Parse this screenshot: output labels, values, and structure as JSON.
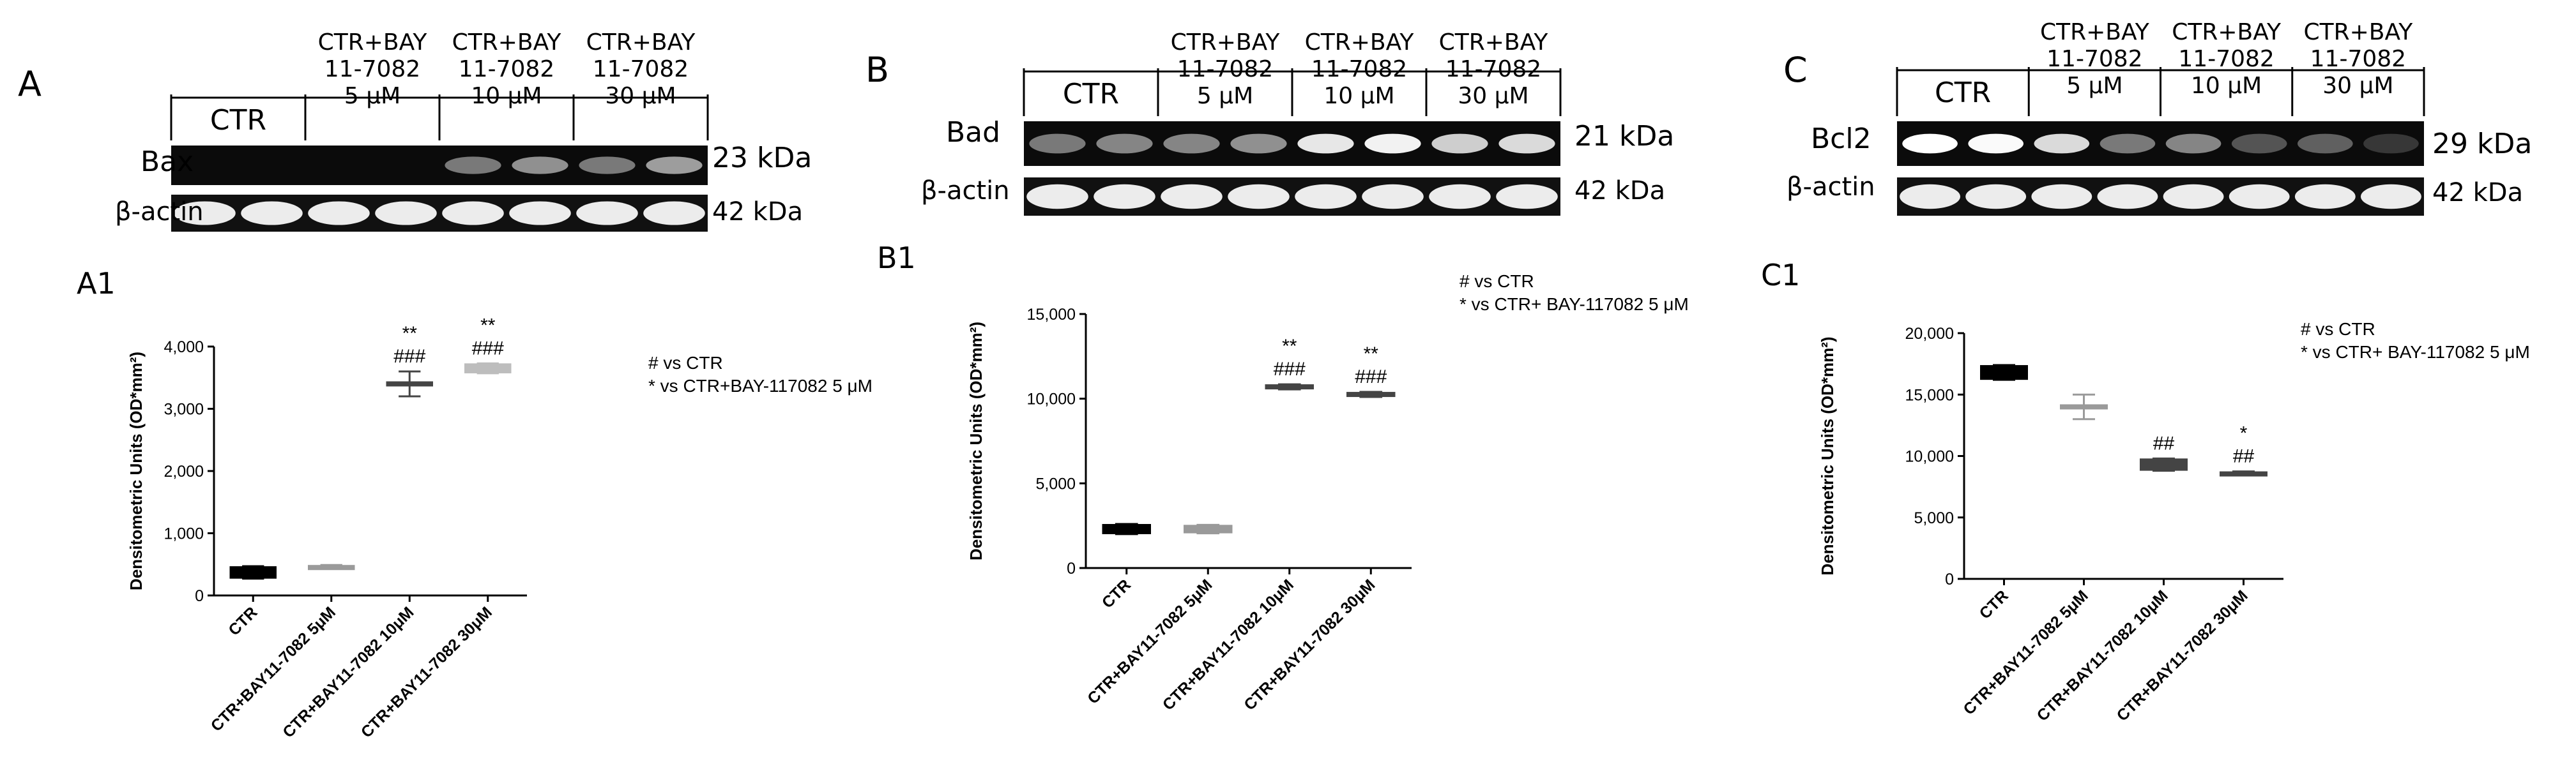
{
  "figure": {
    "blot_letters": [
      "A",
      "B",
      "C"
    ],
    "groups": [
      "CTR",
      "CTR+BAY\n11-7082\n5 μM",
      "CTR+BAY\n11-7082\n10 μM",
      "CTR+BAY\n11-7082\n30 μM"
    ],
    "blots": [
      {
        "letter": "A",
        "protein": "Bax",
        "protein_kda": "23 kDa",
        "control": "β-actin",
        "control_kda": "42 kDa"
      },
      {
        "letter": "B",
        "protein": "Bad",
        "protein_kda": "21 kDa",
        "control": "β-actin",
        "control_kda": "42 kDa"
      },
      {
        "letter": "C",
        "protein": "Bcl2",
        "protein_kda": "29 kDa",
        "control": "β-actin",
        "control_kda": "42 kDa"
      }
    ]
  },
  "chart_data": [
    {
      "panel": "A1",
      "type": "scatter",
      "ylabel": "Densitometric Units (OD*mm²)",
      "categories": [
        "CTR",
        "CTR+BAY11-7082 5μM",
        "CTR+BAY11-7082 10μM",
        "CTR+BAY11-7082 30μM"
      ],
      "values": [
        370,
        460,
        3400,
        3650
      ],
      "errors": [
        100,
        30,
        200,
        80
      ],
      "ylim": [
        0,
        4000
      ],
      "yticks": [
        "0",
        "1,000",
        "2,000",
        "3,000",
        "4,000"
      ],
      "annotations": [
        {
          "index": 2,
          "lines": [
            "**",
            "###"
          ]
        },
        {
          "index": 3,
          "lines": [
            "**",
            "###"
          ]
        }
      ],
      "legend": [
        "# vs CTR",
        "* vs CTR+BAY-117082 5 μM"
      ],
      "colors": [
        "#000000",
        "#9a9a9a",
        "#444444",
        "#bdbdbd"
      ]
    },
    {
      "panel": "B1",
      "type": "scatter",
      "ylabel": "Densitometric Units (OD*mm²)",
      "categories": [
        "CTR",
        "CTR+BAY11-7082 5μM",
        "CTR+BAY11-7082 10μM",
        "CTR+BAY11-7082 30μM"
      ],
      "values": [
        2300,
        2300,
        10700,
        10250
      ],
      "errors": [
        300,
        250,
        150,
        150
      ],
      "ylim": [
        0,
        15000
      ],
      "yticks": [
        "0",
        "5,000",
        "10,000",
        "15,000"
      ],
      "annotations": [
        {
          "index": 2,
          "lines": [
            "**",
            "###"
          ]
        },
        {
          "index": 3,
          "lines": [
            "**",
            "###"
          ]
        }
      ],
      "legend": [
        "# vs CTR",
        "* vs CTR+ BAY-117082 5 μM"
      ],
      "colors": [
        "#000000",
        "#9a9a9a",
        "#444444",
        "#444444"
      ]
    },
    {
      "panel": "C1",
      "type": "scatter",
      "ylabel": "Densitometric Units (OD*mm²)",
      "categories": [
        "CTR",
        "CTR+BAY11-7082 5μM",
        "CTR+BAY11-7082 10μM",
        "CTR+BAY11-7082 30μM"
      ],
      "values": [
        16800,
        14000,
        9300,
        8600
      ],
      "errors": [
        600,
        1000,
        500,
        150
      ],
      "ylim": [
        0,
        20000
      ],
      "yticks": [
        "0",
        "5,000",
        "10,000",
        "15,000",
        "20,000"
      ],
      "annotations": [
        {
          "index": 2,
          "lines": [
            "##"
          ]
        },
        {
          "index": 3,
          "lines": [
            "*",
            "##"
          ]
        }
      ],
      "legend": [
        "# vs CTR",
        "* vs CTR+ BAY-117082 5 μM"
      ],
      "colors": [
        "#000000",
        "#9a9a9a",
        "#444444",
        "#444444"
      ]
    }
  ]
}
